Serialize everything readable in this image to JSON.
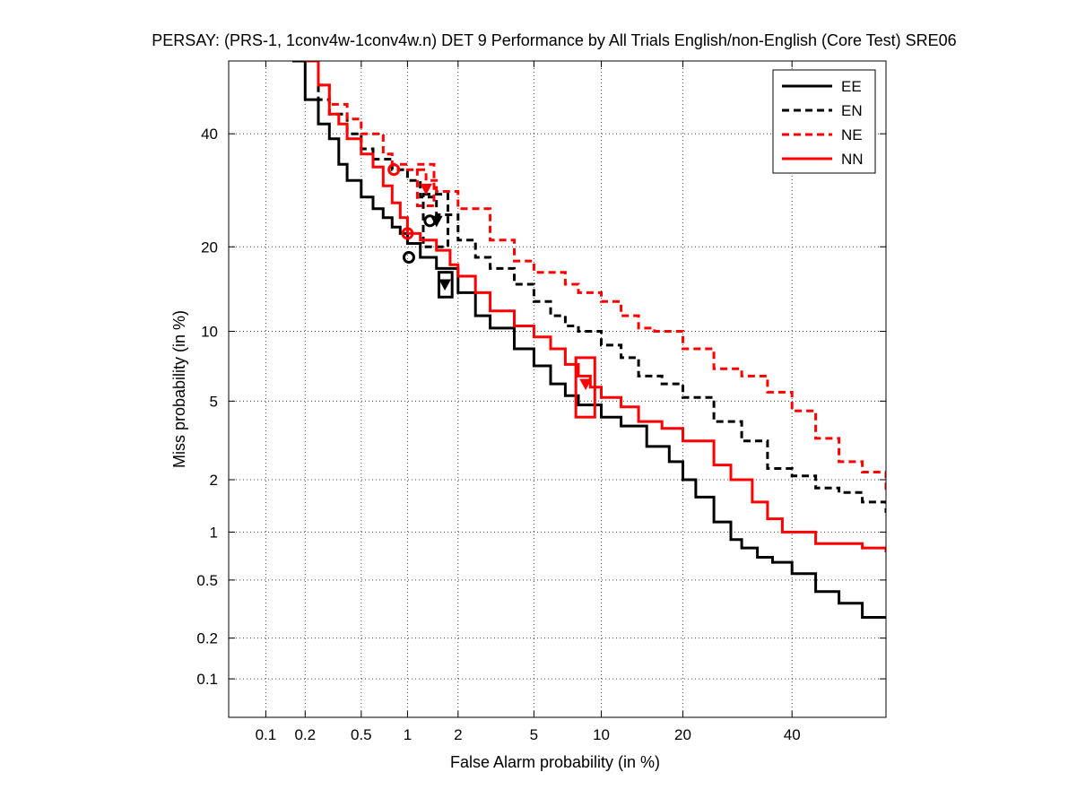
{
  "chart_data": {
    "type": "line",
    "title": "PERSAY: (PRS-1, 1conv4w-1conv4w.n) DET 9 Performance by All Trials English/non-English (Core Test) SRE06",
    "xlabel": "False Alarm probability (in %)",
    "ylabel": "Miss probability (in %)",
    "x_scale": "normal-deviate (probit)",
    "y_scale": "normal-deviate (probit)",
    "xlim": [
      0.05,
      60
    ],
    "ylim": [
      0.05,
      55
    ],
    "x_ticks": [
      0.1,
      0.2,
      0.5,
      1,
      2,
      5,
      10,
      20,
      40
    ],
    "x_tick_labels": [
      "0.1",
      "0.2",
      "0.5",
      "1",
      "2",
      "5",
      "10",
      "20",
      "40"
    ],
    "y_ticks": [
      0.1,
      0.2,
      0.5,
      1,
      2,
      5,
      10,
      20,
      40
    ],
    "y_tick_labels": [
      "0.1",
      "0.2",
      "0.5",
      "1",
      "2",
      "5",
      "10",
      "20",
      "40"
    ],
    "grid": true,
    "legend_position": "top-right",
    "series": [
      {
        "name": "EE",
        "color": "#000000",
        "dash": "solid",
        "points": [
          [
            0.16,
            55
          ],
          [
            0.2,
            47
          ],
          [
            0.25,
            42
          ],
          [
            0.3,
            39
          ],
          [
            0.35,
            34
          ],
          [
            0.4,
            31
          ],
          [
            0.5,
            28
          ],
          [
            0.6,
            26
          ],
          [
            0.7,
            24.5
          ],
          [
            0.8,
            23
          ],
          [
            0.9,
            22
          ],
          [
            1.0,
            20.5
          ],
          [
            1.2,
            18.5
          ],
          [
            1.5,
            17
          ],
          [
            2.0,
            14
          ],
          [
            2.5,
            11.5
          ],
          [
            3.0,
            10.3
          ],
          [
            4.0,
            8.5
          ],
          [
            5.0,
            7.2
          ],
          [
            6.0,
            6.0
          ],
          [
            7.0,
            5.3
          ],
          [
            8.0,
            4.8
          ],
          [
            10,
            4.2
          ],
          [
            12,
            3.8
          ],
          [
            15,
            3.0
          ],
          [
            18,
            2.5
          ],
          [
            20,
            2.0
          ],
          [
            22,
            1.6
          ],
          [
            25,
            1.15
          ],
          [
            28,
            0.9
          ],
          [
            30,
            0.8
          ],
          [
            33,
            0.7
          ],
          [
            36,
            0.65
          ],
          [
            40,
            0.55
          ],
          [
            45,
            0.42
          ],
          [
            50,
            0.35
          ],
          [
            55,
            0.28
          ],
          [
            60,
            0.28
          ]
        ],
        "actual_min_dcf": [
          1.02,
          18.5
        ],
        "min_dcf": [
          1.68,
          15.0
        ],
        "ci_box": [
          [
            1.55,
            13.5
          ],
          [
            1.85,
            16.5
          ]
        ]
      },
      {
        "name": "EN",
        "color": "#000000",
        "dash": "dashed",
        "points": [
          [
            0.17,
            55
          ],
          [
            0.25,
            47
          ],
          [
            0.3,
            44
          ],
          [
            0.4,
            40
          ],
          [
            0.5,
            37
          ],
          [
            0.6,
            35
          ],
          [
            0.8,
            33
          ],
          [
            1.0,
            31
          ],
          [
            1.2,
            28
          ],
          [
            1.5,
            25
          ],
          [
            2.0,
            21
          ],
          [
            2.5,
            18.5
          ],
          [
            3.0,
            17
          ],
          [
            4.0,
            15
          ],
          [
            5.0,
            13
          ],
          [
            6.0,
            11.5
          ],
          [
            7.0,
            10.5
          ],
          [
            8.0,
            10
          ],
          [
            10,
            8.8
          ],
          [
            12,
            7.8
          ],
          [
            14,
            6.5
          ],
          [
            17,
            6.0
          ],
          [
            20,
            5.2
          ],
          [
            25,
            4.0
          ],
          [
            30,
            3.2
          ],
          [
            35,
            2.3
          ],
          [
            40,
            2.1
          ],
          [
            45,
            1.8
          ],
          [
            50,
            1.7
          ],
          [
            55,
            1.5
          ],
          [
            60,
            1.3
          ]
        ],
        "actual_min_dcf": [
          1.37,
          24.0
        ],
        "min_dcf": [
          1.5,
          24.0
        ],
        "ci_box": [
          [
            1.25,
            20.0
          ],
          [
            1.75,
            28.5
          ]
        ]
      },
      {
        "name": "NE",
        "color": "#ff0000",
        "dash": "dashed",
        "points": [
          [
            0.2,
            55
          ],
          [
            0.25,
            50
          ],
          [
            0.3,
            46
          ],
          [
            0.4,
            43
          ],
          [
            0.5,
            40
          ],
          [
            0.7,
            36
          ],
          [
            0.8,
            34
          ],
          [
            1.0,
            33
          ],
          [
            1.3,
            31
          ],
          [
            1.5,
            29
          ],
          [
            2.0,
            26
          ],
          [
            3.0,
            21
          ],
          [
            4.0,
            18
          ],
          [
            5.0,
            16.5
          ],
          [
            7.0,
            15.0
          ],
          [
            8.0,
            14.0
          ],
          [
            10,
            13
          ],
          [
            12,
            11.5
          ],
          [
            14,
            10.3
          ],
          [
            16,
            10.0
          ],
          [
            20,
            8.5
          ],
          [
            25,
            7.0
          ],
          [
            30,
            6.5
          ],
          [
            35,
            5.5
          ],
          [
            40,
            4.5
          ],
          [
            45,
            3.3
          ],
          [
            50,
            2.5
          ],
          [
            55,
            2.2
          ],
          [
            60,
            1.7
          ]
        ],
        "actual_min_dcf": [
          0.82,
          33.0
        ],
        "min_dcf": [
          1.3,
          29.5
        ],
        "ci_box": [
          [
            1.15,
            26.5
          ],
          [
            1.45,
            34.0
          ]
        ]
      },
      {
        "name": "NN",
        "color": "#ff0000",
        "dash": "solid",
        "points": [
          [
            0.2,
            55
          ],
          [
            0.25,
            50
          ],
          [
            0.3,
            44
          ],
          [
            0.35,
            42
          ],
          [
            0.4,
            39
          ],
          [
            0.5,
            36
          ],
          [
            0.6,
            33.5
          ],
          [
            0.7,
            30
          ],
          [
            0.8,
            27
          ],
          [
            0.9,
            24.5
          ],
          [
            1.0,
            22
          ],
          [
            1.2,
            21
          ],
          [
            1.5,
            19.5
          ],
          [
            1.8,
            17.5
          ],
          [
            2.0,
            16
          ],
          [
            2.5,
            14
          ],
          [
            3.0,
            12
          ],
          [
            4.0,
            10.5
          ],
          [
            5.0,
            9.5
          ],
          [
            6.0,
            8.5
          ],
          [
            7.0,
            7.3
          ],
          [
            8.0,
            6.5
          ],
          [
            9.0,
            5.8
          ],
          [
            10,
            5.2
          ],
          [
            12,
            4.7
          ],
          [
            14,
            4.0
          ],
          [
            17,
            3.7
          ],
          [
            20,
            3.2
          ],
          [
            25,
            2.4
          ],
          [
            28,
            2.0
          ],
          [
            32,
            1.5
          ],
          [
            35,
            1.2
          ],
          [
            38,
            1.0
          ],
          [
            45,
            0.85
          ],
          [
            55,
            0.8
          ],
          [
            60,
            0.75
          ]
        ],
        "actual_min_dcf": [
          1.0,
          22.0
        ],
        "min_dcf": [
          8.6,
          6.0
        ],
        "ci_box": [
          [
            7.8,
            4.2
          ],
          [
            9.4,
            7.8
          ]
        ]
      }
    ]
  }
}
